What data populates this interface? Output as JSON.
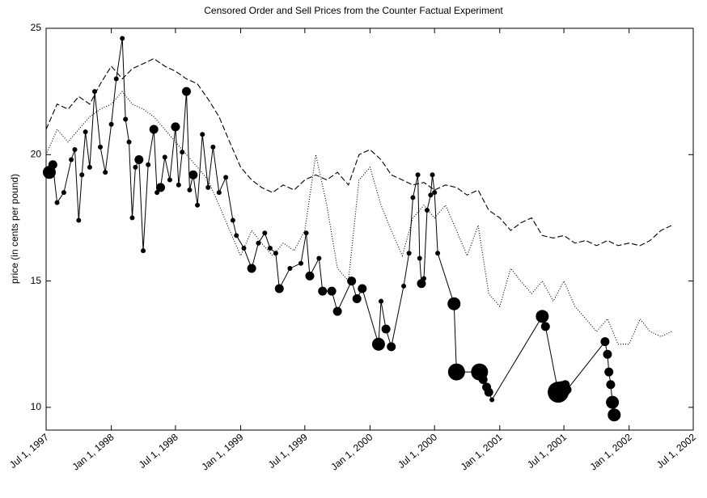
{
  "chart_data": {
    "type": "line",
    "title": "Censored Order and Sell Prices from the Counter Factual Experiment",
    "ylabel": "price (in cents per pound)",
    "xlim": [
      "1997-07-01",
      "2002-07-01"
    ],
    "xticks": [
      {
        "value": "1997-07-01",
        "label": "Jul 1, 1997"
      },
      {
        "value": "1998-01-01",
        "label": "Jan 1, 1998"
      },
      {
        "value": "1998-07-01",
        "label": "Jul 1, 1998"
      },
      {
        "value": "1999-01-01",
        "label": "Jan 1, 1999"
      },
      {
        "value": "1999-07-01",
        "label": "Jul 1, 1999"
      },
      {
        "value": "2000-01-01",
        "label": "Jan 1, 2000"
      },
      {
        "value": "2000-07-01",
        "label": "Jul 1, 2000"
      },
      {
        "value": "2001-01-01",
        "label": "Jan 1, 2001"
      },
      {
        "value": "2001-07-01",
        "label": "Jul 1, 2001"
      },
      {
        "value": "2002-01-01",
        "label": "Jan 1, 2002"
      },
      {
        "value": "2002-07-01",
        "label": "Jul 1, 2002"
      }
    ],
    "ylim": [
      9.1,
      25
    ],
    "yticks": [
      10,
      15,
      20,
      25
    ],
    "series": [
      {
        "color": "#000000",
        "line_style": "dashed",
        "x": [
          "1997-07-01",
          "1997-08-01",
          "1997-09-01",
          "1997-10-01",
          "1997-11-01",
          "1997-12-01",
          "1998-01-01",
          "1998-02-01",
          "1998-03-01",
          "1998-04-01",
          "1998-05-01",
          "1998-06-01",
          "1998-07-01",
          "1998-08-01",
          "1998-09-01",
          "1998-10-01",
          "1998-11-01",
          "1998-12-01",
          "1999-01-01",
          "1999-02-01",
          "1999-03-01",
          "1999-04-01",
          "1999-05-01",
          "1999-06-01",
          "1999-07-01",
          "1999-08-01",
          "1999-09-01",
          "1999-10-01",
          "1999-11-01",
          "1999-12-01",
          "2000-01-01",
          "2000-02-01",
          "2000-03-01",
          "2000-04-01",
          "2000-05-01",
          "2000-06-01",
          "2000-07-01",
          "2000-08-01",
          "2000-09-01",
          "2000-10-01",
          "2000-11-01",
          "2000-12-01",
          "2001-01-01",
          "2001-02-01",
          "2001-03-01",
          "2001-04-01",
          "2001-05-01",
          "2001-06-01",
          "2001-07-01",
          "2001-08-01",
          "2001-09-01",
          "2001-10-01",
          "2001-11-01",
          "2001-12-01",
          "2002-01-01",
          "2002-02-01",
          "2002-03-01",
          "2002-04-01",
          "2002-05-01"
        ],
        "values": [
          21,
          22,
          21.8,
          22.3,
          22,
          22.8,
          23.5,
          23,
          23.4,
          23.6,
          23.8,
          23.5,
          23.3,
          23,
          22.8,
          22.2,
          21.5,
          20.5,
          19.5,
          19,
          18.7,
          18.5,
          18.8,
          18.6,
          19,
          19.2,
          19,
          19.3,
          18.8,
          20,
          20.2,
          19.8,
          19.2,
          19,
          18.8,
          18.9,
          18.6,
          18.8,
          18.7,
          18.4,
          18.6,
          17.8,
          17.5,
          17,
          17.3,
          17.5,
          16.8,
          16.7,
          16.8,
          16.5,
          16.6,
          16.4,
          16.6,
          16.4,
          16.5,
          16.4,
          16.6,
          17,
          17.2
        ]
      },
      {
        "color": "#000000",
        "line_style": "dotted",
        "x": [
          "1997-07-01",
          "1997-08-01",
          "1997-09-01",
          "1997-10-01",
          "1997-11-01",
          "1997-12-01",
          "1998-01-01",
          "1998-02-01",
          "1998-03-01",
          "1998-04-01",
          "1998-05-01",
          "1998-06-01",
          "1998-07-01",
          "1998-08-01",
          "1998-09-01",
          "1998-10-01",
          "1998-11-01",
          "1998-12-01",
          "1999-01-01",
          "1999-02-01",
          "1999-03-01",
          "1999-04-01",
          "1999-05-01",
          "1999-06-01",
          "1999-07-01",
          "1999-08-01",
          "1999-09-01",
          "1999-10-01",
          "1999-11-01",
          "1999-12-01",
          "2000-01-01",
          "2000-02-01",
          "2000-03-01",
          "2000-04-01",
          "2000-05-01",
          "2000-06-01",
          "2000-07-01",
          "2000-08-01",
          "2000-09-01",
          "2000-10-01",
          "2000-11-01",
          "2000-12-01",
          "2001-01-01",
          "2001-02-01",
          "2001-03-01",
          "2001-04-01",
          "2001-05-01",
          "2001-06-01",
          "2001-07-01",
          "2001-08-01",
          "2001-09-01",
          "2001-10-01",
          "2001-11-01",
          "2001-12-01",
          "2002-01-01",
          "2002-02-01",
          "2002-03-01",
          "2002-04-01",
          "2002-05-01"
        ],
        "values": [
          20,
          21,
          20.5,
          21,
          21.5,
          21.8,
          22,
          22.5,
          22,
          21.8,
          21.5,
          21,
          20.5,
          20,
          19.5,
          19,
          18,
          17,
          16,
          17,
          16.5,
          16,
          16.5,
          16.2,
          17,
          20,
          18,
          15.5,
          15,
          19,
          19.5,
          18,
          17,
          16,
          17.5,
          18,
          17.5,
          18,
          17,
          16,
          17.2,
          14.5,
          14,
          15.5,
          15,
          14.5,
          15,
          14.2,
          15,
          14,
          13.5,
          13,
          13.5,
          12.5,
          12.5,
          13.5,
          13,
          12.8,
          13
        ]
      },
      {
        "color": "#000000",
        "line_style": "solid",
        "marker": "circle",
        "x": [
          "1997-07-10",
          "1997-07-20",
          "1997-08-01",
          "1997-08-20",
          "1997-09-10",
          "1997-09-20",
          "1997-10-01",
          "1997-10-10",
          "1997-10-20",
          "1997-11-01",
          "1997-11-15",
          "1997-12-01",
          "1997-12-15",
          "1998-01-01",
          "1998-01-15",
          "1998-02-01",
          "1998-02-10",
          "1998-02-20",
          "1998-03-01",
          "1998-03-10",
          "1998-03-20",
          "1998-04-01",
          "1998-04-15",
          "1998-05-01",
          "1998-05-10",
          "1998-05-20",
          "1998-06-01",
          "1998-06-15",
          "1998-07-01",
          "1998-07-10",
          "1998-07-20",
          "1998-08-01",
          "1998-08-10",
          "1998-08-20",
          "1998-09-01",
          "1998-09-15",
          "1998-10-01",
          "1998-10-15",
          "1998-11-01",
          "1998-11-20",
          "1998-12-10",
          "1998-12-20",
          "1999-01-10",
          "1999-02-01",
          "1999-02-20",
          "1999-03-10",
          "1999-03-25",
          "1999-04-10",
          "1999-04-20",
          "1999-05-20",
          "1999-06-20",
          "1999-07-05",
          "1999-07-15",
          "1999-08-10",
          "1999-08-20",
          "1999-09-15",
          "1999-10-01",
          "1999-11-10",
          "1999-11-25",
          "1999-12-10",
          "2000-01-25",
          "2000-02-01",
          "2000-02-15",
          "2000-03-01",
          "2000-04-05",
          "2000-04-20",
          "2000-05-01",
          "2000-05-15",
          "2000-05-20",
          "2000-05-25",
          "2000-06-01",
          "2000-06-10",
          "2000-06-20",
          "2000-06-25",
          "2000-07-01",
          "2000-07-10",
          "2000-08-25",
          "2000-09-01",
          "2000-11-05",
          "2000-11-15",
          "2000-11-25",
          "2000-12-01",
          "2000-12-10",
          "2001-05-01",
          "2001-05-10",
          "2001-06-15",
          "2001-06-25",
          "2001-07-05",
          "2001-07-10",
          "2001-10-25",
          "2001-11-01",
          "2001-11-05",
          "2001-11-10",
          "2001-11-15",
          "2001-11-20"
        ],
        "values": [
          19.3,
          19.6,
          18.1,
          18.5,
          19.8,
          20.2,
          17.4,
          19.2,
          20.9,
          19.5,
          22.5,
          20.3,
          19.3,
          21.2,
          23,
          24.6,
          21.4,
          20.5,
          17.5,
          19.5,
          19.8,
          16.2,
          19.6,
          21,
          18.5,
          18.7,
          19.9,
          19,
          21.1,
          18.8,
          20.1,
          22.5,
          18.6,
          19.2,
          18,
          20.8,
          18.7,
          20.3,
          18.5,
          19.1,
          17.4,
          16.8,
          16.3,
          15.5,
          16.5,
          16.9,
          16.3,
          16.1,
          14.7,
          15.5,
          15.7,
          16.9,
          15.2,
          15.9,
          14.6,
          14.6,
          13.8,
          15,
          14.3,
          14.7,
          12.5,
          14.2,
          13.1,
          12.4,
          14.8,
          16.1,
          18.3,
          19.2,
          15.9,
          14.9,
          15.1,
          17.8,
          18.4,
          19.2,
          18.5,
          16.1,
          14.1,
          11.4,
          11.4,
          11.1,
          10.8,
          10.6,
          10.3,
          13.6,
          13.2,
          10.6,
          10.7,
          10.9,
          10.7,
          12.6,
          12.1,
          11.4,
          10.9,
          10.2,
          9.7
        ],
        "sizes": [
          3,
          2,
          1,
          1,
          1,
          1,
          1,
          1,
          1,
          1,
          1,
          1,
          1,
          1,
          1,
          1,
          1,
          1,
          1,
          1,
          2,
          1,
          1,
          2,
          1,
          2,
          1,
          1,
          2,
          1,
          1,
          2,
          1,
          2,
          1,
          1,
          1,
          1,
          1,
          1,
          1,
          1,
          1,
          2,
          1,
          1,
          1,
          1,
          2,
          1,
          1,
          1,
          2,
          1,
          2,
          2,
          2,
          2,
          2,
          2,
          3,
          1,
          2,
          2,
          1,
          1,
          1,
          1,
          1,
          2,
          1,
          1,
          1,
          1,
          1,
          1,
          3,
          4,
          4,
          2,
          2,
          2,
          1,
          3,
          2,
          5,
          4,
          2,
          2,
          2,
          2,
          2,
          2,
          3,
          3
        ]
      }
    ]
  }
}
